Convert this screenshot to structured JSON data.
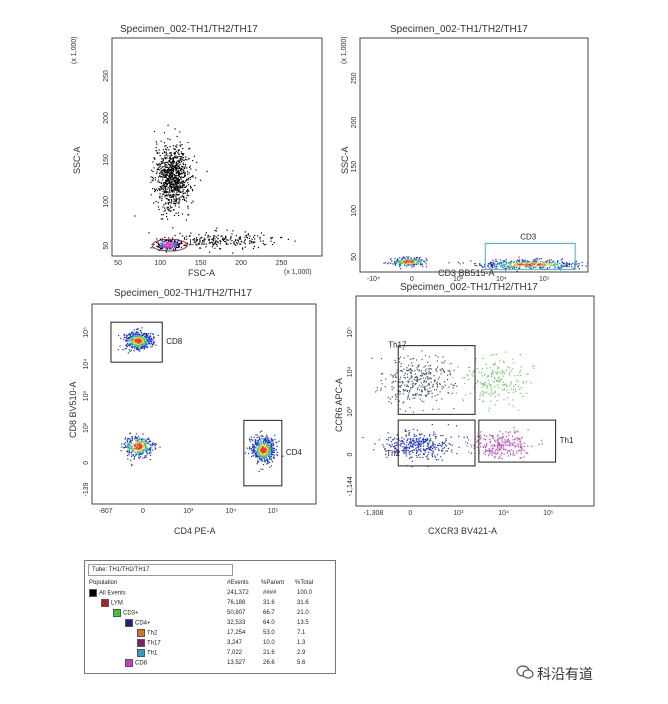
{
  "chart_data": [
    {
      "type": "scatter",
      "title": "Specimen_002-TH1/TH2/TH17",
      "xlabel": "FSC-A",
      "ylabel": "SSC-A",
      "x_unit_label": "(x 1,000)",
      "y_unit_label": "(x 1,000)",
      "xticks": [
        "50",
        "100",
        "150",
        "200",
        "250"
      ],
      "yticks": [
        "50",
        "100",
        "150",
        "200",
        "250"
      ],
      "xlim": [
        0,
        262
      ],
      "ylim": [
        0,
        262
      ],
      "populations": [
        {
          "name": "main",
          "center": [
            75,
            95
          ],
          "spread": [
            22,
            38
          ],
          "n": 900
        },
        {
          "name": "lymph",
          "center": [
            70,
            14
          ],
          "spread": [
            15,
            6
          ],
          "n": 250
        },
        {
          "name": "diffuse",
          "center": [
            140,
            20
          ],
          "spread": [
            60,
            10
          ],
          "n": 200
        }
      ],
      "gates": [
        {
          "label": "LYM",
          "shape": "ellipse",
          "center": [
            72,
            13
          ],
          "radii": [
            22,
            7
          ]
        }
      ]
    },
    {
      "type": "scatter",
      "title": "Specimen_002-TH1/TH2/TH17",
      "xlabel": "CD3 BB515-A",
      "ylabel": "SSC-A",
      "y_unit_label": "(x 1,000)",
      "xticks": [
        "-10⁴",
        "0",
        "10³",
        "10⁴",
        "10⁵"
      ],
      "yticks": [
        "50",
        "100",
        "150",
        "200",
        "250"
      ],
      "populations": [
        {
          "name": "CD3-",
          "center": [
            0.0,
            12
          ],
          "spread": [
            0.6,
            5
          ],
          "n": 200
        },
        {
          "name": "CD3+",
          "center": [
            3.8,
            9
          ],
          "spread": [
            1.6,
            5
          ],
          "n": 450
        }
      ],
      "gates": [
        {
          "label": "CD3",
          "shape": "rect",
          "x": [
            2.4,
            5.2
          ],
          "y": [
            3,
            32
          ]
        }
      ]
    },
    {
      "type": "scatter",
      "title": "Specimen_002-TH1/TH2/TH17",
      "xlabel": "CD4 PE-A",
      "ylabel": "CD8 BV510-A",
      "xticks": [
        "-807",
        "0",
        "10³",
        "10⁴",
        "10⁵"
      ],
      "yticks": [
        "-139",
        "0",
        "10²",
        "10³",
        "10⁴",
        "10⁵"
      ],
      "populations": [
        {
          "name": "CD8",
          "center": [
            0.6,
            4.2
          ],
          "spread": [
            0.35,
            0.25
          ],
          "n": 500
        },
        {
          "name": "CD4",
          "center": [
            3.9,
            1.2
          ],
          "spread": [
            0.3,
            0.35
          ],
          "n": 550
        },
        {
          "name": "DN",
          "center": [
            0.6,
            1.3
          ],
          "spread": [
            0.4,
            0.3
          ],
          "n": 350
        }
      ],
      "gates": [
        {
          "label": "CD8",
          "shape": "rect",
          "x": [
            -0.1,
            1.25
          ],
          "y": [
            3.6,
            4.7
          ]
        },
        {
          "label": "CD4",
          "shape": "rect",
          "x": [
            3.4,
            4.4
          ],
          "y": [
            0.2,
            2.0
          ]
        }
      ]
    },
    {
      "type": "scatter",
      "title": "Specimen_002-TH1/TH2/TH17",
      "xlabel": "CXCR3 BV421-A",
      "ylabel": "CCR6 APC-A",
      "xticks": [
        "-1,308",
        "0",
        "10³",
        "10⁴",
        "10⁵"
      ],
      "yticks": [
        "-1,144",
        "0",
        "10³",
        "10⁴",
        "10⁵"
      ],
      "populations": [
        {
          "name": "Th17",
          "center": [
            1.0,
            3.0
          ],
          "spread": [
            0.9,
            0.6
          ],
          "n": 350
        },
        {
          "name": "Th2",
          "center": [
            1.0,
            1.3
          ],
          "spread": [
            0.9,
            0.35
          ],
          "n": 350
        },
        {
          "name": "Th1",
          "center": [
            3.2,
            1.3
          ],
          "spread": [
            0.8,
            0.35
          ],
          "n": 250
        },
        {
          "name": "CCR6+CXCR3+",
          "center": [
            3.0,
            3.0
          ],
          "spread": [
            0.8,
            0.6
          ],
          "n": 200
        }
      ],
      "gates": [
        {
          "label": "Th17",
          "shape": "rect",
          "x": [
            0.5,
            2.5
          ],
          "y": [
            2.1,
            3.9
          ]
        },
        {
          "label": "Th2",
          "shape": "rect",
          "x": [
            0.5,
            2.5
          ],
          "y": [
            0.75,
            1.95
          ]
        },
        {
          "label": "Th1",
          "shape": "rect",
          "x": [
            2.6,
            4.6
          ],
          "y": [
            0.85,
            1.95
          ]
        }
      ]
    }
  ],
  "table": {
    "tube": "Tube:  TH1/TH2/TH17",
    "columns": [
      "Population",
      "#Events",
      "%Parent",
      "%Total"
    ],
    "rows": [
      {
        "indent": 0,
        "color": "#000000",
        "name": "All Events",
        "events": "241,372",
        "parent": "####",
        "total": "100.0"
      },
      {
        "indent": 1,
        "color": "#b02020",
        "name": "LYM",
        "events": "76,188",
        "parent": "31.6",
        "total": "31.6"
      },
      {
        "indent": 2,
        "color": "#33cc33",
        "name": "CD3+",
        "events": "50,807",
        "parent": "66.7",
        "total": "21.0"
      },
      {
        "indent": 3,
        "color": "#1a237e",
        "name": "CD4+",
        "events": "32,533",
        "parent": "64.0",
        "total": "13.5"
      },
      {
        "indent": 4,
        "color": "#e07020",
        "name": "Th2",
        "events": "17,254",
        "parent": "53.0",
        "total": "7.1"
      },
      {
        "indent": 4,
        "color": "#802060",
        "name": "Th17",
        "events": "3,247",
        "parent": "10.0",
        "total": "1.3"
      },
      {
        "indent": 4,
        "color": "#30a0c0",
        "name": "Th1",
        "events": "7,022",
        "parent": "21.6",
        "total": "2.9"
      },
      {
        "indent": 3,
        "color": "#c040c0",
        "name": "CD8",
        "events": "13,527",
        "parent": "26.6",
        "total": "5.6"
      }
    ]
  },
  "watermark": {
    "text": "科沿有道",
    "icon": "wechat-icon"
  }
}
